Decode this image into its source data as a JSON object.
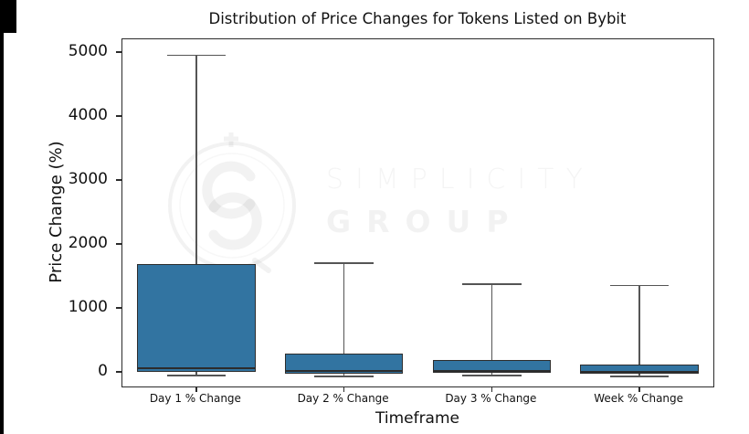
{
  "chart_data": {
    "type": "boxplot",
    "title": "Distribution of Price Changes for Tokens Listed on Bybit",
    "xlabel": "Timeframe",
    "ylabel": "Price Change (%)",
    "ylim": [
      -230,
      5200
    ],
    "yticks": [
      0,
      1000,
      2000,
      3000,
      4000,
      5000
    ],
    "categories": [
      "Day 1 % Change",
      "Day 2 % Change",
      "Day 3 % Change",
      "Week % Change"
    ],
    "series": [
      {
        "category": "Day 1 % Change",
        "whisker_low": -60,
        "q1": 0,
        "median": 50,
        "q3": 1680,
        "whisker_high": 4950
      },
      {
        "category": "Day 2 % Change",
        "whisker_low": -70,
        "q1": -25,
        "median": 15,
        "q3": 280,
        "whisker_high": 1700
      },
      {
        "category": "Day 3 % Change",
        "whisker_low": -60,
        "q1": -20,
        "median": 10,
        "q3": 190,
        "whisker_high": 1370
      },
      {
        "category": "Week % Change",
        "whisker_low": -75,
        "q1": -30,
        "median": 5,
        "q3": 115,
        "whisker_high": 1350
      }
    ],
    "grid": false,
    "legend_position": "none"
  },
  "watermark": {
    "line1": "SIMPLICITY",
    "line2": "GROUP",
    "logo": "simplicity-group-logo"
  },
  "colors": {
    "box_fill": "#3274a1",
    "box_edge": "#2d2d2d",
    "whisker": "#555555",
    "median": "#2c2c2c",
    "spine": "#2b2b2b",
    "watermark": "rgba(0,0,0,0.05)"
  }
}
